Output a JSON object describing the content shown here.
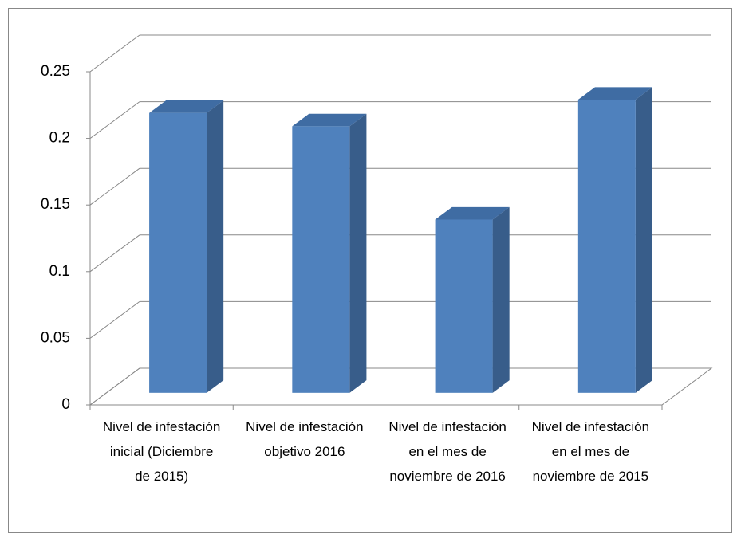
{
  "chart_data": {
    "type": "bar3d",
    "categories": [
      "Nivel de infestación inicial (Diciembre de 2015)",
      "Nivel de infestación objetivo 2016",
      "Nivel de infestación en el mes de noviembre de 2016",
      "Nivel de infestación en el mes de noviembre de 2015"
    ],
    "values": [
      0.21,
      0.2,
      0.13,
      0.22
    ],
    "color": "#4f81bd",
    "ylim": [
      0,
      0.25
    ],
    "yticks": [
      0,
      0.05,
      0.1,
      0.15,
      0.2,
      0.25
    ],
    "grid": true
  }
}
